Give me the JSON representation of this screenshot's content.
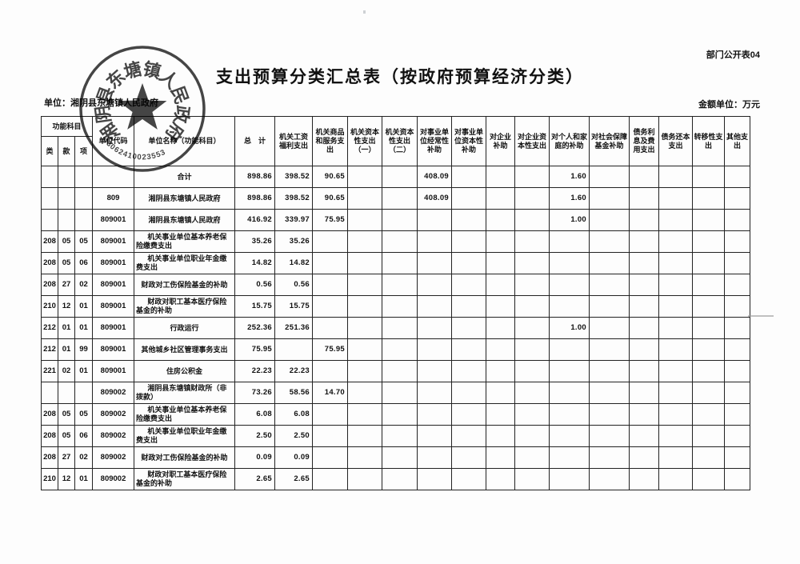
{
  "page": {
    "doc_label": "部门公开表04",
    "title": "支出预算分类汇总表（按政府预算经济分类）",
    "unit_line": "单位：湘阴县东塘镇人民政府",
    "amount_unit_line": "金额单位：万元"
  },
  "seal": {
    "ring_text": "湘阴县东塘镇人民政府",
    "number": "43062410023553"
  },
  "table": {
    "function_subject_header": "功能科目",
    "function_subject_cols": [
      "类",
      "款",
      "项"
    ],
    "columns": [
      "单位代码",
      "单位名称（功能科目）",
      "总　计",
      "机关工资福利支出",
      "机关商品和服务支出",
      "机关资本性支出（一）",
      "机关资本性支出（二）",
      "对事业单位经常性补助",
      "对事业单位资本性补助",
      "对企业补助",
      "对企业资本性支出",
      "对个人和家庭的补助",
      "对社会保障基金补助",
      "债务利息及费用支出",
      "债务还本支出",
      "转移性支出",
      "其他支出"
    ],
    "rows": [
      {
        "func_class": "",
        "func_section": "",
        "func_item": "",
        "code": "",
        "name": "合计",
        "values": [
          "898.86",
          "398.52",
          "90.65",
          "",
          "",
          "408.09",
          "",
          "",
          "",
          "1.60",
          "",
          "",
          "",
          "",
          ""
        ]
      },
      {
        "func_class": "",
        "func_section": "",
        "func_item": "",
        "code": "809",
        "name": "湘阴县东塘镇人民政府",
        "values": [
          "898.86",
          "398.52",
          "90.65",
          "",
          "",
          "408.09",
          "",
          "",
          "",
          "1.60",
          "",
          "",
          "",
          "",
          ""
        ]
      },
      {
        "func_class": "",
        "func_section": "",
        "func_item": "",
        "code": "809001",
        "name": "湘阴县东塘镇人民政府",
        "values": [
          "416.92",
          "339.97",
          "75.95",
          "",
          "",
          "",
          "",
          "",
          "",
          "1.00",
          "",
          "",
          "",
          "",
          ""
        ]
      },
      {
        "func_class": "208",
        "func_section": "05",
        "func_item": "05",
        "code": "809001",
        "name": "机关事业单位基本养老保险缴费支出",
        "values": [
          "35.26",
          "35.26",
          "",
          "",
          "",
          "",
          "",
          "",
          "",
          "",
          "",
          "",
          "",
          "",
          ""
        ]
      },
      {
        "func_class": "208",
        "func_section": "05",
        "func_item": "06",
        "code": "809001",
        "name": "机关事业单位职业年金缴费支出",
        "values": [
          "14.82",
          "14.82",
          "",
          "",
          "",
          "",
          "",
          "",
          "",
          "",
          "",
          "",
          "",
          "",
          ""
        ]
      },
      {
        "func_class": "208",
        "func_section": "27",
        "func_item": "02",
        "code": "809001",
        "name": "财政对工伤保险基金的补助",
        "values": [
          "0.56",
          "0.56",
          "",
          "",
          "",
          "",
          "",
          "",
          "",
          "",
          "",
          "",
          "",
          "",
          ""
        ]
      },
      {
        "func_class": "210",
        "func_section": "12",
        "func_item": "01",
        "code": "809001",
        "name": "财政对职工基本医疗保险基金的补助",
        "values": [
          "15.75",
          "15.75",
          "",
          "",
          "",
          "",
          "",
          "",
          "",
          "",
          "",
          "",
          "",
          "",
          ""
        ]
      },
      {
        "func_class": "212",
        "func_section": "01",
        "func_item": "01",
        "code": "809001",
        "name": "行政运行",
        "values": [
          "252.36",
          "251.36",
          "",
          "",
          "",
          "",
          "",
          "",
          "",
          "1.00",
          "",
          "",
          "",
          "",
          ""
        ]
      },
      {
        "func_class": "212",
        "func_section": "01",
        "func_item": "99",
        "code": "809001",
        "name": "其他城乡社区管理事务支出",
        "values": [
          "75.95",
          "",
          "75.95",
          "",
          "",
          "",
          "",
          "",
          "",
          "",
          "",
          "",
          "",
          "",
          ""
        ]
      },
      {
        "func_class": "221",
        "func_section": "02",
        "func_item": "01",
        "code": "809001",
        "name": "住房公积金",
        "values": [
          "22.23",
          "22.23",
          "",
          "",
          "",
          "",
          "",
          "",
          "",
          "",
          "",
          "",
          "",
          "",
          ""
        ]
      },
      {
        "func_class": "",
        "func_section": "",
        "func_item": "",
        "code": "809002",
        "name": "湘阴县东塘镇财政所（非拨款）",
        "values": [
          "73.26",
          "58.56",
          "14.70",
          "",
          "",
          "",
          "",
          "",
          "",
          "",
          "",
          "",
          "",
          "",
          ""
        ]
      },
      {
        "func_class": "208",
        "func_section": "05",
        "func_item": "05",
        "code": "809002",
        "name": "机关事业单位基本养老保险缴费支出",
        "values": [
          "6.08",
          "6.08",
          "",
          "",
          "",
          "",
          "",
          "",
          "",
          "",
          "",
          "",
          "",
          "",
          ""
        ]
      },
      {
        "func_class": "208",
        "func_section": "05",
        "func_item": "06",
        "code": "809002",
        "name": "机关事业单位职业年金缴费支出",
        "values": [
          "2.50",
          "2.50",
          "",
          "",
          "",
          "",
          "",
          "",
          "",
          "",
          "",
          "",
          "",
          "",
          ""
        ]
      },
      {
        "func_class": "208",
        "func_section": "27",
        "func_item": "02",
        "code": "809002",
        "name": "财政对工伤保险基金的补助",
        "values": [
          "0.09",
          "0.09",
          "",
          "",
          "",
          "",
          "",
          "",
          "",
          "",
          "",
          "",
          "",
          "",
          ""
        ]
      },
      {
        "func_class": "210",
        "func_section": "12",
        "func_item": "01",
        "code": "809002",
        "name": "财政对职工基本医疗保险基金的补助",
        "values": [
          "2.65",
          "2.65",
          "",
          "",
          "",
          "",
          "",
          "",
          "",
          "",
          "",
          "",
          "",
          "",
          ""
        ]
      }
    ]
  }
}
